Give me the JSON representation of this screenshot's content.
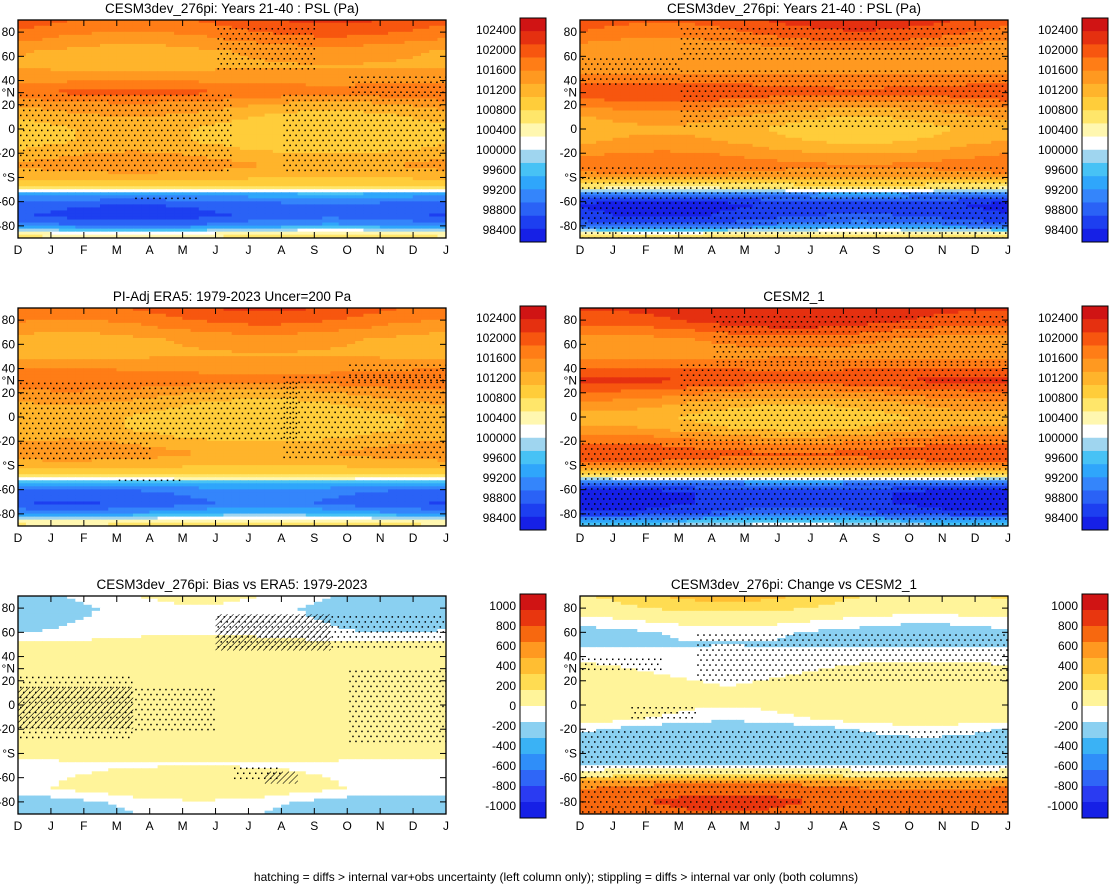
{
  "footnote": "hatching = diffs > internal var+obs uncertainty (left column only); stippling = diffs > internal var only (both columns)",
  "colors": {
    "abs_levels": [
      "#1620e6",
      "#1d3ff0",
      "#2a62f6",
      "#3485fb",
      "#2fa6fb",
      "#47c2f5",
      "#9fd5ef",
      "#ffffff",
      "#fff7b0",
      "#ffe66a",
      "#ffcd3a",
      "#ffb42b",
      "#ff9920",
      "#ff7d16",
      "#f7560f",
      "#e53010",
      "#d01414"
    ],
    "diff_levels": [
      "#1620e6",
      "#2a3bf2",
      "#2f66f7",
      "#2f8ef9",
      "#3ab2f5",
      "#8ad0f1",
      "#ffffff",
      "#fff49a",
      "#ffdc52",
      "#ffbe32",
      "#ff9920",
      "#f7680f",
      "#e8360f",
      "#d01414"
    ],
    "stipple": "#000000"
  },
  "chart_data": [
    {
      "type": "heatmap",
      "title": "CESM3dev_276pi: Years 21-40 : PSL (Pa)",
      "x_tick_labels": [
        "D",
        "J",
        "F",
        "M",
        "A",
        "M",
        "J",
        "J",
        "A",
        "S",
        "O",
        "N",
        "D",
        "J"
      ],
      "y_tick_labels": [
        "80",
        "60",
        "40",
        "°N",
        "20",
        "0",
        "-20",
        "°S",
        "-60",
        "-80"
      ],
      "y_tick_values": [
        80,
        60,
        40,
        30,
        20,
        0,
        -20,
        -40,
        -60,
        -80
      ],
      "ylim": [
        -90,
        90
      ],
      "colorbar_labels": [
        "102400",
        "102000",
        "101600",
        "101200",
        "100800",
        "100400",
        "100000",
        "99600",
        "99200",
        "98800",
        "98400"
      ],
      "colorbar_levels": [
        98200,
        98400,
        98600,
        98800,
        99000,
        99200,
        99400,
        99600,
        100000,
        100400,
        100800,
        101000,
        101200,
        101400,
        101600,
        102000,
        102400
      ],
      "profile": {
        "lat": [
          -90,
          -80,
          -72,
          -62,
          -54,
          -48,
          -40,
          -30,
          -20,
          -10,
          0,
          10,
          20,
          30,
          40,
          52,
          64,
          78,
          90
        ],
        "value": [
          100200,
          98700,
          98400,
          98500,
          98900,
          100300,
          100900,
          101050,
          100900,
          100700,
          100700,
          100850,
          101050,
          101400,
          101150,
          100950,
          101000,
          101300,
          101500
        ]
      },
      "stipple_regions": [
        [
          5.5,
          8.5,
          50,
          85
        ],
        [
          -0.5,
          6,
          -35,
          30
        ],
        [
          7.5,
          12.5,
          -35,
          30
        ],
        [
          9.5,
          12.5,
          30,
          45
        ],
        [
          3,
          5,
          -60,
          -55
        ]
      ],
      "hatch_regions": []
    },
    {
      "type": "heatmap",
      "title": "CESM3dev_276pi: Years 21-40 : PSL (Pa)",
      "x_tick_labels": [
        "D",
        "J",
        "F",
        "M",
        "A",
        "M",
        "J",
        "J",
        "A",
        "S",
        "O",
        "N",
        "D",
        "J"
      ],
      "y_tick_labels": [
        "80",
        "60",
        "40",
        "°N",
        "20",
        "0",
        "-20",
        "°S",
        "-60",
        "-80"
      ],
      "y_tick_values": [
        80,
        60,
        40,
        30,
        20,
        0,
        -20,
        -40,
        -60,
        -80
      ],
      "ylim": [
        -90,
        90
      ],
      "colorbar_labels": [
        "102400",
        "102000",
        "101600",
        "101200",
        "100800",
        "100400",
        "100000",
        "99600",
        "99200",
        "98800",
        "98400"
      ],
      "colorbar_levels": [
        98200,
        98400,
        98600,
        98800,
        99000,
        99200,
        99400,
        99600,
        100000,
        100400,
        100800,
        101000,
        101200,
        101400,
        101600,
        102000,
        102400
      ],
      "profile": {
        "lat": [
          -90,
          -80,
          -72,
          -62,
          -54,
          -48,
          -40,
          -30,
          -20,
          -10,
          0,
          10,
          20,
          30,
          40,
          52,
          64,
          78,
          90
        ],
        "value": [
          100400,
          98600,
          98300,
          98200,
          98700,
          100200,
          101100,
          101300,
          101100,
          100900,
          100800,
          100950,
          101200,
          101550,
          101300,
          101050,
          101100,
          101400,
          101600
        ]
      },
      "stipple_regions": [
        [
          -0.5,
          12.5,
          -90,
          -30
        ],
        [
          2.5,
          12.5,
          0,
          50
        ],
        [
          2.5,
          12.5,
          55,
          85
        ],
        [
          -0.5,
          2.5,
          35,
          60
        ]
      ],
      "hatch_regions": []
    },
    {
      "type": "heatmap",
      "title": "PI-Adj ERA5: 1979-2023 Uncer=200 Pa",
      "x_tick_labels": [
        "D",
        "J",
        "F",
        "M",
        "A",
        "M",
        "J",
        "J",
        "A",
        "S",
        "O",
        "N",
        "D",
        "J"
      ],
      "y_tick_labels": [
        "80",
        "60",
        "40",
        "°N",
        "20",
        "0",
        "-20",
        "°S",
        "-60",
        "-80"
      ],
      "y_tick_values": [
        80,
        60,
        40,
        30,
        20,
        0,
        -20,
        -40,
        -60,
        -80
      ],
      "ylim": [
        -90,
        90
      ],
      "colorbar_labels": [
        "102400",
        "102000",
        "101600",
        "101200",
        "100800",
        "100400",
        "100000",
        "99600",
        "99200",
        "98800",
        "98400"
      ],
      "colorbar_levels": [
        98200,
        98400,
        98600,
        98800,
        99000,
        99200,
        99400,
        99600,
        100000,
        100400,
        100800,
        101000,
        101200,
        101400,
        101600,
        102000,
        102400
      ],
      "profile": {
        "lat": [
          -90,
          -80,
          -72,
          -62,
          -54,
          -48,
          -40,
          -30,
          -20,
          -10,
          0,
          10,
          20,
          30,
          40,
          52,
          64,
          78,
          90
        ],
        "value": [
          100300,
          98900,
          98500,
          98600,
          99000,
          100300,
          100900,
          101050,
          100900,
          100700,
          100700,
          100850,
          101050,
          101350,
          101150,
          100950,
          101000,
          101300,
          101500
        ]
      },
      "stipple_regions": [
        [
          -0.5,
          3.5,
          -35,
          30
        ],
        [
          3.5,
          8,
          -20,
          30
        ],
        [
          7.5,
          12.5,
          -35,
          35
        ],
        [
          9.5,
          12.5,
          30,
          45
        ],
        [
          2.5,
          4.5,
          -55,
          -50
        ]
      ],
      "hatch_regions": []
    },
    {
      "type": "heatmap",
      "title": "CESM2_1",
      "x_tick_labels": [
        "D",
        "J",
        "F",
        "M",
        "A",
        "M",
        "J",
        "J",
        "A",
        "S",
        "O",
        "N",
        "D",
        "J"
      ],
      "y_tick_labels": [
        "80",
        "60",
        "40",
        "°N",
        "20",
        "0",
        "-20",
        "°S",
        "-60",
        "-80"
      ],
      "y_tick_values": [
        80,
        60,
        40,
        30,
        20,
        0,
        -20,
        -40,
        -60,
        -80
      ],
      "ylim": [
        -90,
        90
      ],
      "colorbar_labels": [
        "102400",
        "102000",
        "101600",
        "101200",
        "100800",
        "100400",
        "100000",
        "99600",
        "99200",
        "98800",
        "98400"
      ],
      "colorbar_levels": [
        98200,
        98400,
        98600,
        98800,
        99000,
        99200,
        99400,
        99600,
        100000,
        100400,
        100800,
        101000,
        101200,
        101400,
        101600,
        102000,
        102400
      ],
      "profile": {
        "lat": [
          -90,
          -80,
          -72,
          -62,
          -54,
          -48,
          -40,
          -30,
          -20,
          -10,
          0,
          10,
          20,
          30,
          40,
          52,
          64,
          78,
          90
        ],
        "value": [
          99400,
          98400,
          98200,
          98200,
          98700,
          100300,
          101300,
          101500,
          101250,
          100900,
          100750,
          100950,
          101250,
          101600,
          101400,
          101100,
          101200,
          101600,
          101800
        ]
      },
      "stipple_regions": [
        [
          -0.5,
          12.5,
          -90,
          -20
        ],
        [
          2.5,
          12.5,
          -20,
          45
        ],
        [
          3.5,
          12.5,
          45,
          85
        ]
      ],
      "hatch_regions": []
    },
    {
      "type": "heatmap",
      "title": "CESM3dev_276pi: Bias vs ERA5: 1979-2023",
      "x_tick_labels": [
        "D",
        "J",
        "F",
        "M",
        "A",
        "M",
        "J",
        "J",
        "A",
        "S",
        "O",
        "N",
        "D",
        "J"
      ],
      "y_tick_labels": [
        "80",
        "60",
        "40",
        "°N",
        "20",
        "0",
        "-20",
        "°S",
        "-60",
        "-80"
      ],
      "y_tick_values": [
        80,
        60,
        40,
        30,
        20,
        0,
        -20,
        -40,
        -60,
        -80
      ],
      "ylim": [
        -90,
        90
      ],
      "colorbar_labels": [
        "1000",
        "800",
        "600",
        "400",
        "200",
        "0",
        "-200",
        "-400",
        "-600",
        "-800",
        "-1000"
      ],
      "colorbar_levels": [
        -1200,
        -1000,
        -800,
        -600,
        -400,
        -200,
        -100,
        100,
        200,
        400,
        600,
        800,
        1000,
        1200
      ],
      "profile": {
        "lat": [
          -90,
          -80,
          -70,
          -60,
          -50,
          -40,
          -30,
          -20,
          -10,
          0,
          10,
          20,
          30,
          40,
          50,
          60,
          70,
          80,
          90
        ],
        "value": [
          -250,
          -200,
          -50,
          -80,
          -120,
          -60,
          -20,
          0,
          0,
          0,
          0,
          0,
          20,
          0,
          -60,
          -160,
          -180,
          -200,
          -150
        ]
      },
      "stipple_regions": [
        [
          5.5,
          12.5,
          45,
          75
        ],
        [
          -0.5,
          3,
          -30,
          25
        ],
        [
          3,
          5.5,
          -20,
          15
        ],
        [
          9.5,
          12.5,
          -30,
          30
        ],
        [
          6,
          7.5,
          -60,
          -50
        ]
      ],
      "hatch_regions": [
        [
          5.5,
          9,
          45,
          75
        ],
        [
          -0.5,
          3,
          -20,
          15
        ],
        [
          7,
          8,
          -65,
          -55
        ]
      ]
    },
    {
      "type": "heatmap",
      "title": "CESM3dev_276pi: Change vs CESM2_1",
      "x_tick_labels": [
        "D",
        "J",
        "F",
        "M",
        "A",
        "M",
        "J",
        "J",
        "A",
        "S",
        "O",
        "N",
        "D",
        "J"
      ],
      "y_tick_labels": [
        "80",
        "60",
        "40",
        "°N",
        "20",
        "0",
        "-20",
        "°S",
        "-60",
        "-80"
      ],
      "y_tick_values": [
        80,
        60,
        40,
        30,
        20,
        0,
        -20,
        -40,
        -60,
        -80
      ],
      "ylim": [
        -90,
        90
      ],
      "colorbar_labels": [
        "1000",
        "800",
        "600",
        "400",
        "200",
        "0",
        "-200",
        "-400",
        "-600",
        "-800",
        "-1000"
      ],
      "colorbar_levels": [
        -1200,
        -1000,
        -800,
        -600,
        -400,
        -200,
        -100,
        100,
        200,
        400,
        600,
        800,
        1000,
        1200
      ],
      "profile": {
        "lat": [
          -90,
          -80,
          -72,
          -65,
          -58,
          -50,
          -42,
          -35,
          -28,
          -20,
          -10,
          0,
          10,
          20,
          30,
          40,
          50,
          60,
          70,
          80,
          90
        ],
        "value": [
          700,
          780,
          700,
          550,
          60,
          -220,
          -320,
          -300,
          -260,
          -230,
          -60,
          0,
          0,
          -40,
          -100,
          -150,
          -220,
          -220,
          -100,
          80,
          150
        ]
      },
      "stipple_regions": [
        [
          -0.5,
          12.5,
          -90,
          -20
        ],
        [
          3,
          12.5,
          20,
          60
        ],
        [
          1,
          3,
          -10,
          0
        ],
        [
          -0.5,
          2,
          30,
          40
        ]
      ],
      "hatch_regions": []
    }
  ]
}
